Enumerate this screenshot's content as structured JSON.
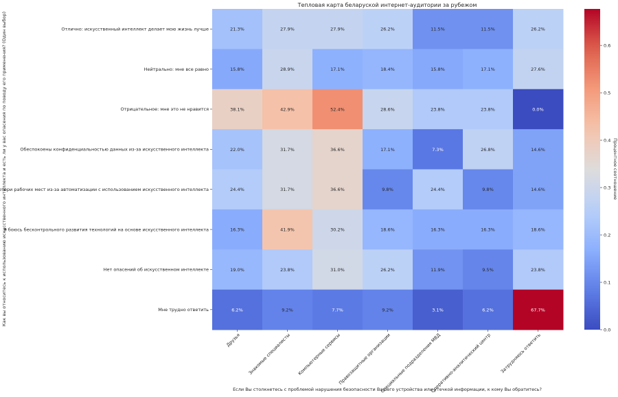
{
  "chart_data": {
    "type": "heatmap",
    "title": "Тепловая карта беларуской интернет-аудитории за рубежом",
    "xlabel": "Если Вы столкнетесь с проблемой нарушения безопасности Вашего устройства или утечкой информации, к кому Вы обратитесь?",
    "ylabel": "Как вы относитесь к использованию искусственного интеллекта и есть ли у вас опасения по поводу его применения? (Один выбор)",
    "colorbar_label": "Процентное соотношение",
    "colormap": "coolwarm",
    "value_range": [
      0,
      0.677
    ],
    "colorbar_ticks": [
      "0.0",
      "0.1",
      "0.2",
      "0.3",
      "0.4",
      "0.5",
      "0.6"
    ],
    "columns": [
      "Друзья",
      "Знакомые специалисты",
      "Компьютерные сервисы",
      "Правозащитные организации",
      "Специальные подразделения МВД",
      "Оперативно-аналитический центр",
      "Затрудняюсь ответить"
    ],
    "rows": [
      "Отлично: искусственный интеллект делает мою жизнь лучше",
      "Нейтрально: мне все равно",
      "Отрицательное: мне это не нравится",
      "Обеспокоены конфиденциальностью данных из-за искусственного интеллекта",
      "Боюсь потери рабочих мест из-за автоматизации с использованием искусственного интеллекта",
      "Я боюсь бесконтрольного развития технологий на основе искусственного интеллекта",
      "Нет опасений об искусственном интеллекте",
      "Мне трудно ответить"
    ],
    "values": [
      [
        0.213,
        0.279,
        0.279,
        0.262,
        0.115,
        0.115,
        0.262
      ],
      [
        0.158,
        0.289,
        0.171,
        0.184,
        0.158,
        0.171,
        0.276
      ],
      [
        0.381,
        0.429,
        0.524,
        0.286,
        0.238,
        0.238,
        0.0
      ],
      [
        0.22,
        0.317,
        0.366,
        0.171,
        0.073,
        0.268,
        0.146
      ],
      [
        0.244,
        0.317,
        0.366,
        0.098,
        0.244,
        0.098,
        0.146
      ],
      [
        0.163,
        0.419,
        0.302,
        0.186,
        0.163,
        0.163,
        0.186
      ],
      [
        0.19,
        0.238,
        0.31,
        0.262,
        0.119,
        0.095,
        0.238
      ],
      [
        0.062,
        0.092,
        0.077,
        0.092,
        0.031,
        0.062,
        0.677
      ]
    ],
    "labels": [
      [
        "21.3%",
        "27.9%",
        "27.9%",
        "26.2%",
        "11.5%",
        "11.5%",
        "26.2%"
      ],
      [
        "15.8%",
        "28.9%",
        "17.1%",
        "18.4%",
        "15.8%",
        "17.1%",
        "27.6%"
      ],
      [
        "38.1%",
        "42.9%",
        "52.4%",
        "28.6%",
        "23.8%",
        "23.8%",
        "0.0%"
      ],
      [
        "22.0%",
        "31.7%",
        "36.6%",
        "17.1%",
        "7.3%",
        "26.8%",
        "14.6%"
      ],
      [
        "24.4%",
        "31.7%",
        "36.6%",
        "9.8%",
        "24.4%",
        "9.8%",
        "14.6%"
      ],
      [
        "16.3%",
        "41.9%",
        "30.2%",
        "18.6%",
        "16.3%",
        "16.3%",
        "18.6%"
      ],
      [
        "19.0%",
        "23.8%",
        "31.0%",
        "26.2%",
        "11.9%",
        "9.5%",
        "23.8%"
      ],
      [
        "6.2%",
        "9.2%",
        "7.7%",
        "9.2%",
        "3.1%",
        "6.2%",
        "67.7%"
      ]
    ]
  }
}
